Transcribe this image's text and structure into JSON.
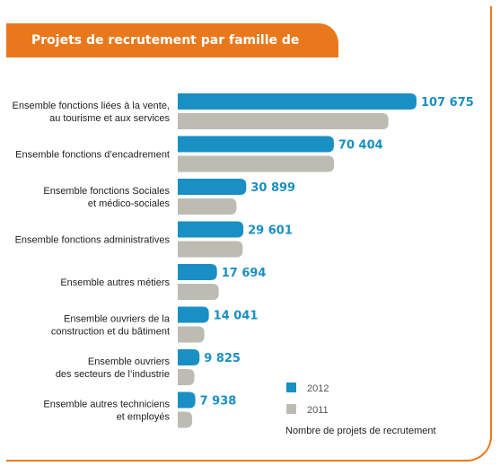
{
  "chart_data": {
    "type": "bar",
    "orientation": "horizontal",
    "title": "Projets de recrutement par famille de métier",
    "categories": [
      [
        "Ensemble fonctions liées à la vente,",
        "au tourisme et aux services"
      ],
      [
        "Ensemble fonctions d’encadrement"
      ],
      [
        "Ensemble fonctions Sociales",
        "et médico-sociales"
      ],
      [
        "Ensemble fonctions administratives"
      ],
      [
        "Ensemble autres métiers"
      ],
      [
        "Ensemble ouvriers de la",
        "construction et du bâtiment"
      ],
      [
        "Ensemble ouvriers",
        "des secteurs de l’industrie"
      ],
      [
        "Ensemble autres techniciens",
        "et employés"
      ]
    ],
    "series": [
      {
        "name": "2012",
        "color": "#1a8fc4",
        "values": [
          107675,
          70404,
          30899,
          29601,
          17694,
          14041,
          9825,
          7938
        ],
        "labels": [
          "107 675",
          "70 404",
          "30 899",
          "29 601",
          "17 694",
          "14 041",
          "9 825",
          "7 938"
        ]
      },
      {
        "name": "2011",
        "color": "#bdbcb3",
        "values": [
          95000,
          70500,
          26500,
          29300,
          18500,
          12000,
          7500,
          6500
        ]
      }
    ],
    "note": "Nombre de projets de recrutement",
    "legend_position": "bottom-right",
    "grid": false
  }
}
